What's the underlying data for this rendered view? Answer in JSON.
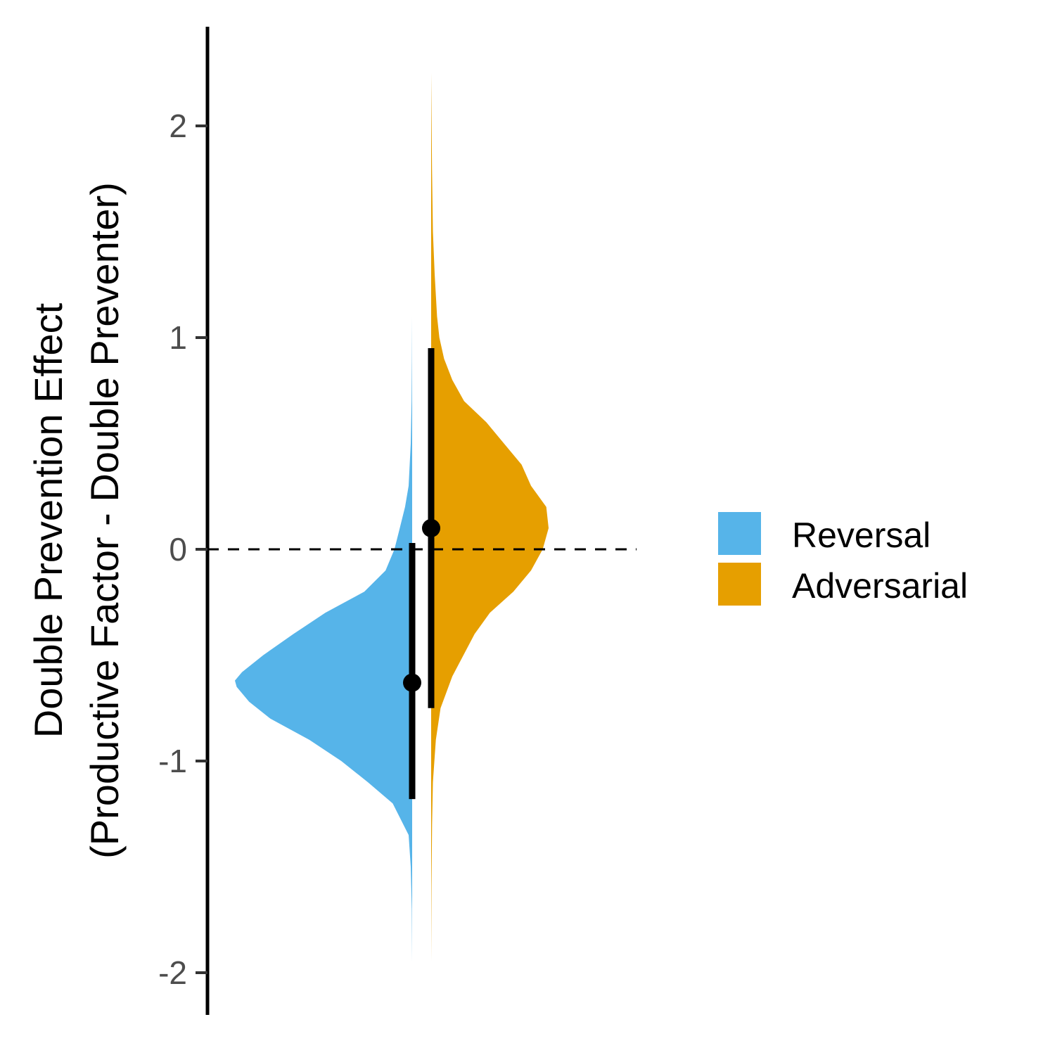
{
  "chart_data": {
    "type": "violin",
    "ylabel_line1": "Double Prevention Effect",
    "ylabel_line2": "(Productive Factor - Double Preventer)",
    "ylim": [
      -2.2,
      2.5
    ],
    "yticks": [
      2,
      1,
      0,
      -1,
      -2
    ],
    "ytick_labels": [
      "2",
      "1",
      "0",
      "-1",
      "-2"
    ],
    "reference_line": {
      "y": 0,
      "style": "dashed"
    },
    "legend": {
      "placement": "right"
    },
    "series": [
      {
        "name": "Reversal",
        "color": "#56B4E9",
        "side": "left",
        "point": -0.63,
        "interval": [
          -1.18,
          0.03
        ],
        "range": [
          -1.95,
          1.1
        ],
        "density": [
          [
            -1.95,
            0.0
          ],
          [
            -1.7,
            0.002
          ],
          [
            -1.5,
            0.008
          ],
          [
            -1.35,
            0.02
          ],
          [
            -1.2,
            0.11
          ],
          [
            -1.1,
            0.25
          ],
          [
            -1.0,
            0.4
          ],
          [
            -0.9,
            0.58
          ],
          [
            -0.8,
            0.8
          ],
          [
            -0.72,
            0.92
          ],
          [
            -0.65,
            0.99
          ],
          [
            -0.62,
            1.0
          ],
          [
            -0.58,
            0.96
          ],
          [
            -0.5,
            0.84
          ],
          [
            -0.4,
            0.67
          ],
          [
            -0.3,
            0.49
          ],
          [
            -0.2,
            0.27
          ],
          [
            -0.1,
            0.15
          ],
          [
            0.0,
            0.1
          ],
          [
            0.1,
            0.07
          ],
          [
            0.2,
            0.04
          ],
          [
            0.3,
            0.02
          ],
          [
            0.5,
            0.008
          ],
          [
            0.7,
            0.003
          ],
          [
            0.9,
            0.001
          ],
          [
            1.1,
            0.0
          ]
        ]
      },
      {
        "name": "Adversarial",
        "color": "#E69F00",
        "side": "right",
        "point": 0.1,
        "interval": [
          -0.75,
          0.95
        ],
        "range": [
          -1.95,
          2.25
        ],
        "density": [
          [
            -1.95,
            0.0
          ],
          [
            -1.6,
            0.003
          ],
          [
            -1.3,
            0.008
          ],
          [
            -1.1,
            0.015
          ],
          [
            -0.9,
            0.04
          ],
          [
            -0.75,
            0.08
          ],
          [
            -0.6,
            0.18
          ],
          [
            -0.4,
            0.37
          ],
          [
            -0.3,
            0.5
          ],
          [
            -0.2,
            0.7
          ],
          [
            -0.1,
            0.85
          ],
          [
            0.0,
            0.95
          ],
          [
            0.1,
            1.0
          ],
          [
            0.2,
            0.98
          ],
          [
            0.3,
            0.85
          ],
          [
            0.4,
            0.77
          ],
          [
            0.5,
            0.62
          ],
          [
            0.6,
            0.47
          ],
          [
            0.7,
            0.28
          ],
          [
            0.8,
            0.18
          ],
          [
            0.9,
            0.11
          ],
          [
            1.0,
            0.07
          ],
          [
            1.1,
            0.05
          ],
          [
            1.2,
            0.04
          ],
          [
            1.3,
            0.03
          ],
          [
            1.5,
            0.015
          ],
          [
            1.8,
            0.007
          ],
          [
            2.0,
            0.004
          ],
          [
            2.25,
            0.0
          ]
        ]
      }
    ]
  }
}
